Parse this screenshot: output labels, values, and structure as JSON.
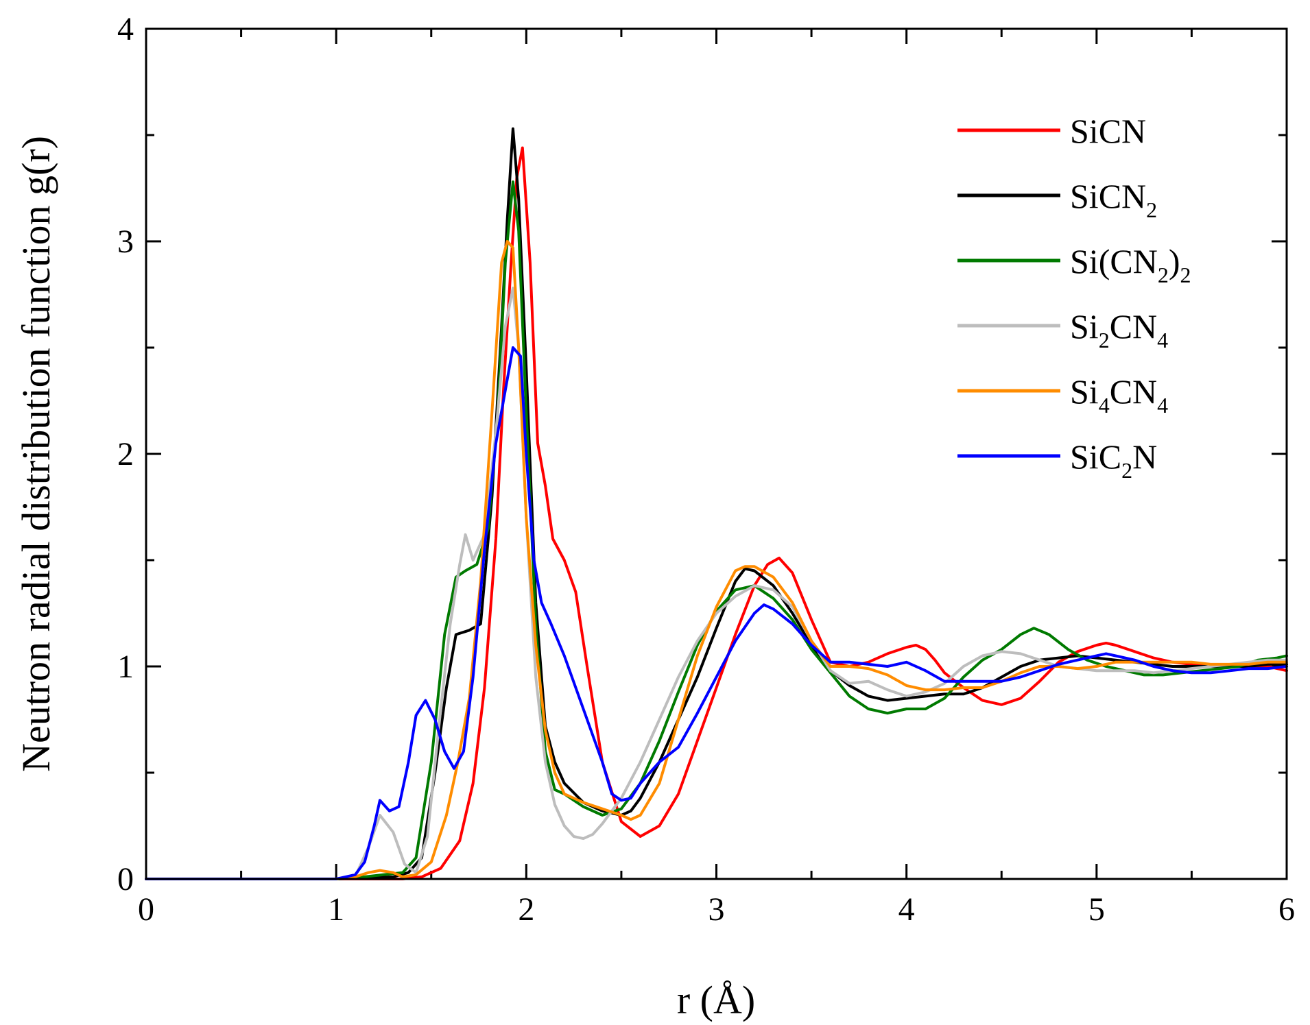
{
  "chart_data": {
    "type": "line",
    "title": "",
    "xlabel": "r (Å)",
    "ylabel": "Neutron radial distribution function g(r)",
    "xlim": [
      0,
      6
    ],
    "ylim": [
      0,
      4
    ],
    "xticks": [
      0,
      1,
      2,
      3,
      4,
      5,
      6
    ],
    "yticks": [
      0,
      1,
      2,
      3,
      4
    ],
    "xtick_labels": [
      "0",
      "1",
      "2",
      "3",
      "4",
      "5",
      "6"
    ],
    "ytick_labels": [
      "0",
      "1",
      "2",
      "3",
      "4"
    ],
    "legend_position": "top-right",
    "series": [
      {
        "name": "SiCN",
        "label_main": "SiCN",
        "label_sub": "",
        "label_tail": "",
        "label_sub2": "",
        "color": "#ff0000",
        "x": [
          0,
          1.0,
          1.35,
          1.45,
          1.55,
          1.65,
          1.72,
          1.78,
          1.84,
          1.88,
          1.92,
          1.95,
          1.98,
          2.02,
          2.06,
          2.1,
          2.14,
          2.2,
          2.26,
          2.32,
          2.4,
          2.5,
          2.6,
          2.7,
          2.8,
          2.9,
          3.0,
          3.1,
          3.2,
          3.27,
          3.33,
          3.4,
          3.5,
          3.6,
          3.7,
          3.8,
          3.9,
          4.0,
          4.05,
          4.1,
          4.15,
          4.2,
          4.3,
          4.4,
          4.5,
          4.6,
          4.7,
          4.8,
          4.9,
          5.0,
          5.05,
          5.1,
          5.2,
          5.3,
          5.4,
          5.5,
          5.6,
          5.7,
          5.8,
          5.9,
          6.0
        ],
        "y": [
          0,
          0,
          0,
          0.01,
          0.05,
          0.18,
          0.45,
          0.9,
          1.6,
          2.3,
          2.9,
          3.3,
          3.44,
          2.9,
          2.05,
          1.85,
          1.6,
          1.5,
          1.35,
          1.0,
          0.55,
          0.27,
          0.2,
          0.25,
          0.4,
          0.65,
          0.9,
          1.15,
          1.38,
          1.48,
          1.51,
          1.44,
          1.22,
          1.02,
          1.0,
          1.02,
          1.06,
          1.09,
          1.1,
          1.08,
          1.03,
          0.97,
          0.9,
          0.84,
          0.82,
          0.85,
          0.93,
          1.02,
          1.07,
          1.1,
          1.11,
          1.1,
          1.07,
          1.04,
          1.02,
          1.01,
          1.0,
          1.0,
          1.0,
          1.0,
          0.98
        ]
      },
      {
        "name": "SiCN2",
        "label_main": "SiCN",
        "label_sub": "2",
        "label_tail": "",
        "label_sub2": "",
        "color": "#000000",
        "x": [
          0,
          1.0,
          1.3,
          1.38,
          1.45,
          1.52,
          1.58,
          1.63,
          1.7,
          1.76,
          1.82,
          1.87,
          1.9,
          1.93,
          1.96,
          2.0,
          2.05,
          2.1,
          2.15,
          2.2,
          2.3,
          2.4,
          2.5,
          2.55,
          2.6,
          2.7,
          2.8,
          2.9,
          3.0,
          3.1,
          3.15,
          3.2,
          3.3,
          3.4,
          3.5,
          3.6,
          3.7,
          3.8,
          3.9,
          4.0,
          4.1,
          4.2,
          4.3,
          4.4,
          4.5,
          4.6,
          4.7,
          4.8,
          4.9,
          5.0,
          5.1,
          5.2,
          5.3,
          5.4,
          5.5,
          5.6,
          5.7,
          5.8,
          5.9,
          6.0
        ],
        "y": [
          0,
          0,
          0.01,
          0.03,
          0.1,
          0.5,
          0.9,
          1.15,
          1.17,
          1.2,
          1.8,
          2.6,
          3.1,
          3.53,
          3.2,
          2.4,
          1.3,
          0.72,
          0.55,
          0.45,
          0.36,
          0.32,
          0.3,
          0.32,
          0.38,
          0.55,
          0.75,
          0.95,
          1.18,
          1.4,
          1.46,
          1.45,
          1.38,
          1.25,
          1.1,
          0.98,
          0.91,
          0.86,
          0.84,
          0.85,
          0.86,
          0.87,
          0.87,
          0.9,
          0.95,
          1.0,
          1.03,
          1.04,
          1.05,
          1.04,
          1.03,
          1.02,
          1.01,
          1.0,
          1.0,
          1.0,
          1.0,
          1.0,
          1.01,
          1.01
        ]
      },
      {
        "name": "Si(CN2)2",
        "label_main": "Si(CN",
        "label_sub": "2",
        "label_tail": ")",
        "label_sub2": "2",
        "color": "#007a00",
        "x": [
          0,
          1.0,
          1.15,
          1.25,
          1.35,
          1.42,
          1.5,
          1.57,
          1.63,
          1.68,
          1.74,
          1.8,
          1.85,
          1.89,
          1.93,
          1.96,
          2.0,
          2.05,
          2.1,
          2.15,
          2.2,
          2.3,
          2.4,
          2.5,
          2.6,
          2.7,
          2.8,
          2.9,
          3.0,
          3.1,
          3.2,
          3.3,
          3.4,
          3.5,
          3.6,
          3.7,
          3.8,
          3.9,
          4.0,
          4.1,
          4.2,
          4.3,
          4.4,
          4.5,
          4.6,
          4.67,
          4.75,
          4.85,
          4.95,
          5.05,
          5.15,
          5.25,
          5.35,
          5.45,
          5.55,
          5.65,
          5.75,
          5.85,
          5.95,
          6.0
        ],
        "y": [
          0,
          0,
          0.01,
          0.02,
          0.03,
          0.1,
          0.55,
          1.15,
          1.42,
          1.45,
          1.48,
          1.65,
          2.2,
          2.9,
          3.28,
          3.05,
          2.2,
          1.2,
          0.6,
          0.42,
          0.4,
          0.34,
          0.3,
          0.33,
          0.45,
          0.65,
          0.88,
          1.1,
          1.26,
          1.36,
          1.38,
          1.32,
          1.22,
          1.08,
          0.97,
          0.86,
          0.8,
          0.78,
          0.8,
          0.8,
          0.85,
          0.95,
          1.03,
          1.08,
          1.15,
          1.18,
          1.15,
          1.08,
          1.03,
          1.0,
          0.98,
          0.96,
          0.96,
          0.97,
          0.98,
          0.99,
          1.0,
          1.03,
          1.04,
          1.05
        ]
      },
      {
        "name": "Si2CN4",
        "label_main": "Si",
        "label_sub": "2",
        "label_tail": "CN",
        "label_sub2": "4",
        "color": "#bdbdbd",
        "x": [
          0,
          1.0,
          1.1,
          1.17,
          1.23,
          1.3,
          1.36,
          1.42,
          1.48,
          1.55,
          1.6,
          1.65,
          1.68,
          1.72,
          1.78,
          1.84,
          1.89,
          1.93,
          1.96,
          2.0,
          2.05,
          2.1,
          2.15,
          2.2,
          2.25,
          2.3,
          2.35,
          2.4,
          2.5,
          2.6,
          2.7,
          2.8,
          2.9,
          3.0,
          3.1,
          3.2,
          3.3,
          3.4,
          3.5,
          3.6,
          3.7,
          3.8,
          3.9,
          4.0,
          4.1,
          4.2,
          4.3,
          4.4,
          4.5,
          4.6,
          4.7,
          4.8,
          4.9,
          5.0,
          5.1,
          5.2,
          5.3,
          5.4,
          5.5,
          5.6,
          5.7,
          5.8,
          5.9,
          6.0
        ],
        "y": [
          0,
          0,
          0.01,
          0.15,
          0.3,
          0.22,
          0.07,
          0.03,
          0.2,
          0.8,
          1.2,
          1.48,
          1.62,
          1.5,
          1.62,
          2.1,
          2.6,
          2.78,
          2.5,
          1.7,
          0.95,
          0.55,
          0.35,
          0.25,
          0.2,
          0.19,
          0.21,
          0.26,
          0.38,
          0.55,
          0.75,
          0.95,
          1.12,
          1.25,
          1.33,
          1.38,
          1.36,
          1.28,
          1.12,
          0.98,
          0.92,
          0.93,
          0.89,
          0.86,
          0.88,
          0.92,
          1.0,
          1.05,
          1.07,
          1.06,
          1.03,
          1.0,
          0.99,
          0.98,
          0.98,
          0.98,
          0.97,
          0.98,
          0.99,
          1.0,
          1.01,
          1.02,
          1.03,
          1.03
        ]
      },
      {
        "name": "Si4CN4",
        "label_main": "Si",
        "label_sub": "4",
        "label_tail": "CN",
        "label_sub2": "4",
        "color": "#ff8c00",
        "x": [
          0,
          1.0,
          1.1,
          1.17,
          1.23,
          1.3,
          1.35,
          1.42,
          1.5,
          1.58,
          1.64,
          1.7,
          1.76,
          1.82,
          1.87,
          1.9,
          1.93,
          1.96,
          2.0,
          2.05,
          2.1,
          2.15,
          2.2,
          2.3,
          2.4,
          2.5,
          2.55,
          2.6,
          2.7,
          2.8,
          2.9,
          3.0,
          3.1,
          3.15,
          3.2,
          3.3,
          3.4,
          3.5,
          3.6,
          3.7,
          3.8,
          3.9,
          4.0,
          4.1,
          4.2,
          4.3,
          4.4,
          4.5,
          4.6,
          4.7,
          4.8,
          4.9,
          5.0,
          5.1,
          5.2,
          5.3,
          5.4,
          5.5,
          5.6,
          5.7,
          5.8,
          5.9,
          6.0
        ],
        "y": [
          0,
          0,
          0.01,
          0.03,
          0.04,
          0.03,
          0.01,
          0.02,
          0.08,
          0.3,
          0.55,
          0.85,
          1.4,
          2.2,
          2.9,
          3.0,
          2.97,
          2.5,
          1.7,
          1.1,
          0.7,
          0.5,
          0.4,
          0.36,
          0.33,
          0.3,
          0.28,
          0.3,
          0.45,
          0.75,
          1.05,
          1.28,
          1.45,
          1.47,
          1.47,
          1.42,
          1.3,
          1.12,
          1.0,
          1.0,
          0.99,
          0.96,
          0.91,
          0.89,
          0.89,
          0.9,
          0.9,
          0.93,
          0.97,
          1.0,
          1.0,
          0.99,
          1.0,
          1.02,
          1.02,
          1.02,
          1.02,
          1.02,
          1.01,
          1.01,
          1.01,
          1.02,
          1.02
        ]
      },
      {
        "name": "SiC2N",
        "label_main": "SiC",
        "label_sub": "2",
        "label_tail": "N",
        "label_sub2": "",
        "color": "#0000ff",
        "x": [
          0,
          1.0,
          1.05,
          1.1,
          1.15,
          1.2,
          1.23,
          1.28,
          1.33,
          1.38,
          1.42,
          1.47,
          1.52,
          1.57,
          1.62,
          1.67,
          1.72,
          1.78,
          1.84,
          1.89,
          1.93,
          1.97,
          2.0,
          2.04,
          2.08,
          2.13,
          2.2,
          2.3,
          2.4,
          2.45,
          2.5,
          2.55,
          2.6,
          2.7,
          2.8,
          2.9,
          3.0,
          3.1,
          3.2,
          3.25,
          3.3,
          3.4,
          3.5,
          3.6,
          3.7,
          3.8,
          3.9,
          4.0,
          4.1,
          4.2,
          4.3,
          4.4,
          4.5,
          4.6,
          4.7,
          4.8,
          4.9,
          5.0,
          5.05,
          5.1,
          5.2,
          5.3,
          5.4,
          5.5,
          5.6,
          5.7,
          5.8,
          5.9,
          6.0
        ],
        "y": [
          0,
          0,
          0.01,
          0.02,
          0.08,
          0.25,
          0.37,
          0.32,
          0.34,
          0.55,
          0.77,
          0.84,
          0.75,
          0.6,
          0.52,
          0.6,
          0.95,
          1.55,
          2.05,
          2.3,
          2.5,
          2.46,
          2.0,
          1.5,
          1.3,
          1.2,
          1.05,
          0.8,
          0.55,
          0.4,
          0.37,
          0.38,
          0.45,
          0.55,
          0.62,
          0.78,
          0.95,
          1.12,
          1.25,
          1.29,
          1.27,
          1.2,
          1.1,
          1.02,
          1.02,
          1.01,
          1.0,
          1.02,
          0.98,
          0.93,
          0.93,
          0.93,
          0.93,
          0.95,
          0.98,
          1.01,
          1.03,
          1.05,
          1.06,
          1.05,
          1.03,
          1.0,
          0.98,
          0.97,
          0.97,
          0.98,
          0.99,
          0.99,
          1.0
        ]
      }
    ]
  }
}
